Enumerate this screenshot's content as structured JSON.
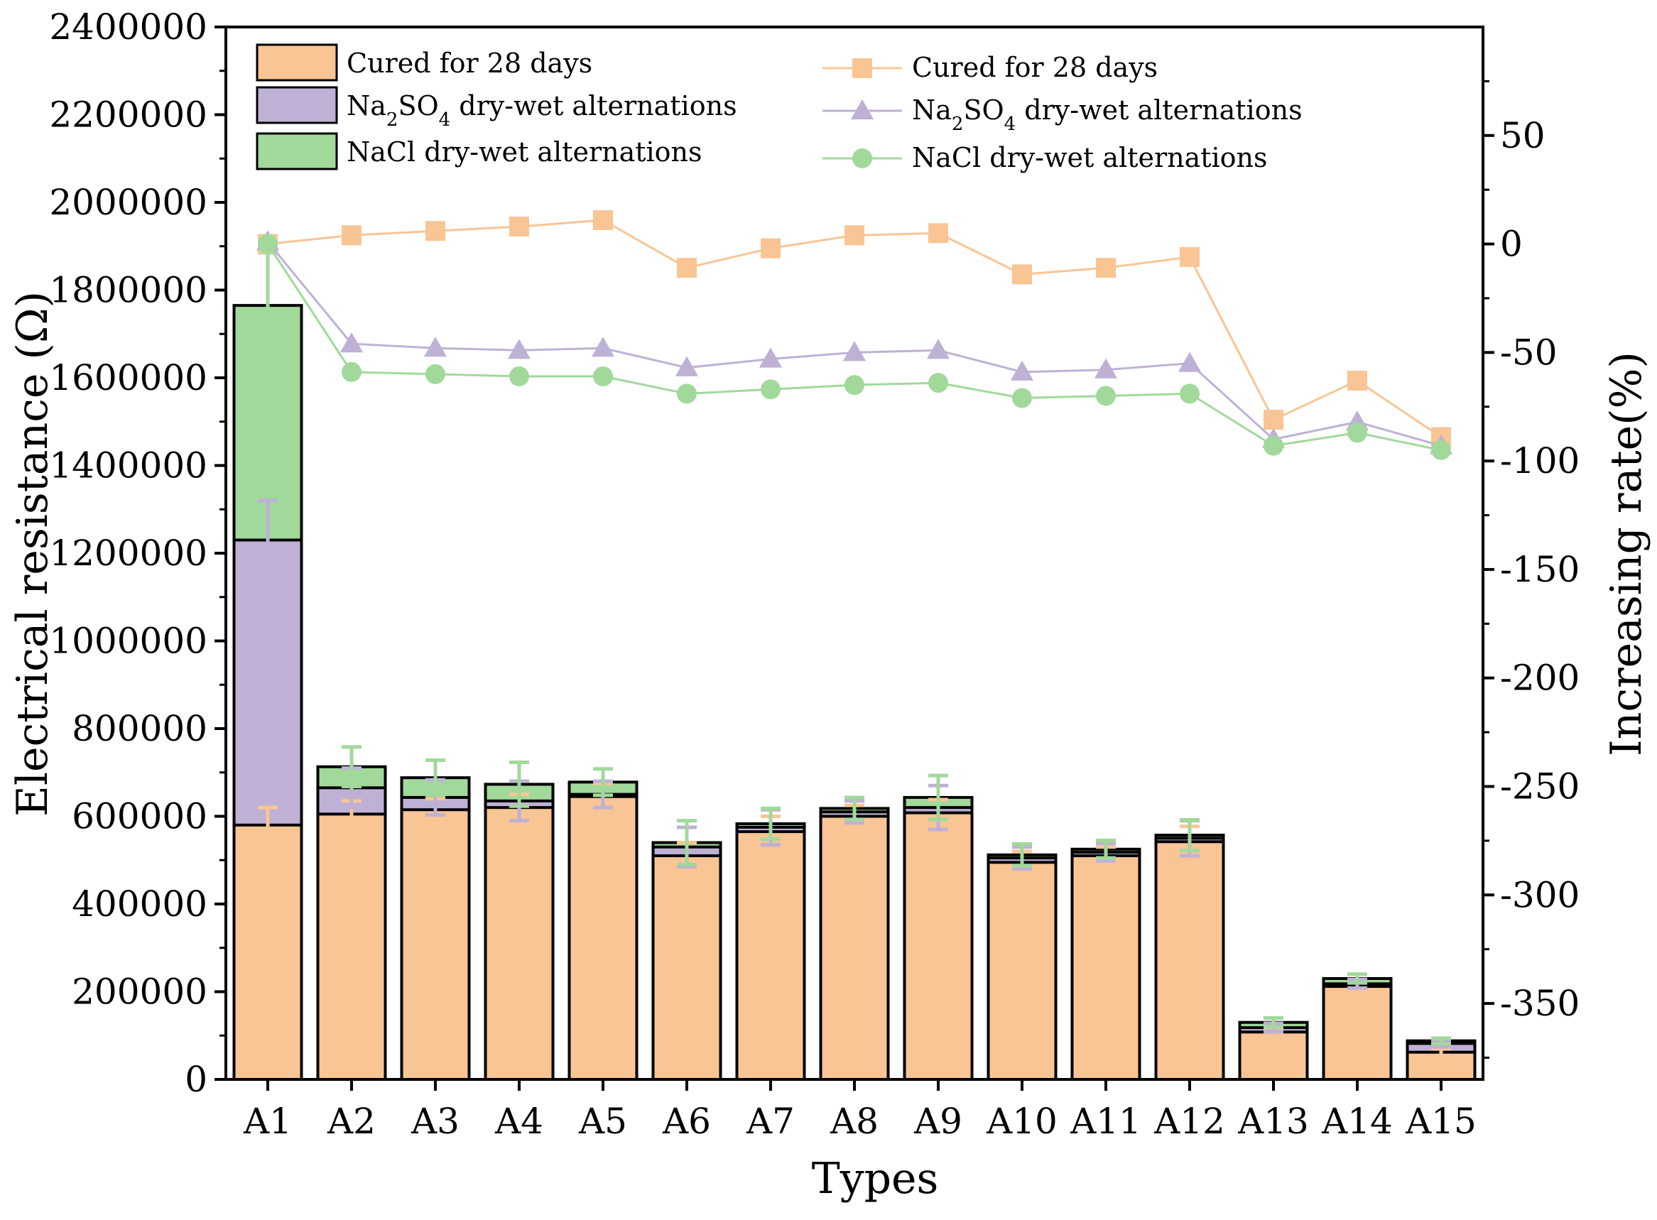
{
  "chart_data": {
    "type": "bar",
    "subtype": "overlapped bars with secondary-axis lines",
    "categories": [
      "A1",
      "A2",
      "A3",
      "A4",
      "A5",
      "A6",
      "A7",
      "A8",
      "A9",
      "A10",
      "A11",
      "A12",
      "A13",
      "A14",
      "A15"
    ],
    "xlabel": "Types",
    "ylabel": "Electrical resistance (Ω)",
    "y2label": "Increasing rate(%)",
    "ylim": [
      0,
      2400000
    ],
    "y2lim": [
      -385,
      100
    ],
    "yticks": [
      "0",
      "200000",
      "400000",
      "600000",
      "800000",
      "1000000",
      "1200000",
      "1400000",
      "1600000",
      "1800000",
      "2000000",
      "2200000",
      "2400000"
    ],
    "y2ticks": [
      "50",
      "0",
      "-50",
      "-100",
      "-150",
      "-200",
      "-250",
      "-300",
      "-350"
    ],
    "bar_series": [
      {
        "name": "Cured for 28 days",
        "color": "#f9c594",
        "values": [
          580000,
          605000,
          615000,
          620000,
          645000,
          510000,
          565000,
          600000,
          608000,
          495000,
          510000,
          542000,
          108000,
          212000,
          62000
        ],
        "errors": [
          40000,
          30000,
          25000,
          30000,
          30000,
          30000,
          35000,
          25000,
          30000,
          25000,
          20000,
          35000,
          10000,
          12000,
          8000
        ]
      },
      {
        "name": "Na2SO4 dry-wet alternations",
        "color": "#bfb1d5",
        "values": [
          1230000,
          665000,
          643000,
          635000,
          650000,
          530000,
          575000,
          610000,
          620000,
          505000,
          518000,
          550000,
          118000,
          218000,
          82000
        ],
        "errors": [
          90000,
          45000,
          40000,
          45000,
          30000,
          45000,
          40000,
          25000,
          50000,
          25000,
          20000,
          40000,
          10000,
          10000,
          8000
        ]
      },
      {
        "name": "NaCl dry-wet alternations",
        "color": "#a1d99b",
        "values": [
          1765000,
          713000,
          688000,
          673000,
          678000,
          540000,
          583000,
          618000,
          643000,
          512000,
          525000,
          557000,
          130000,
          230000,
          88000
        ],
        "errors": [
          120000,
          45000,
          40000,
          50000,
          30000,
          50000,
          35000,
          25000,
          50000,
          25000,
          20000,
          35000,
          10000,
          10000,
          6000
        ]
      }
    ],
    "line_series": [
      {
        "name": "Cured for 28 days",
        "marker": "square",
        "color": "#f9c594",
        "values": [
          0,
          4,
          6,
          8,
          11,
          -11,
          -2,
          4,
          5,
          -14,
          -11,
          -6,
          -81,
          -63,
          -89
        ]
      },
      {
        "name": "Na2SO4 dry-wet alternations",
        "marker": "triangle",
        "color": "#bfb1d5",
        "values": [
          1,
          -46,
          -48,
          -49,
          -48,
          -57,
          -53,
          -50,
          -49,
          -59,
          -58,
          -55,
          -90,
          -82,
          -93
        ]
      },
      {
        "name": "NaCl dry-wet alternations",
        "marker": "circle",
        "color": "#a1d99b",
        "values": [
          0,
          -59,
          -60,
          -61,
          -61,
          -69,
          -67,
          -65,
          -64,
          -71,
          -70,
          -69,
          -93,
          -87,
          -95
        ]
      }
    ],
    "legend_position": "top"
  },
  "legend": {
    "bars": [
      {
        "pre": "Cured for 28 days",
        "sub": "",
        "post": ""
      },
      {
        "pre": "Na",
        "sub": "2",
        "mid": "SO",
        "sub2": "4",
        "post": " dry-wet alternations"
      },
      {
        "pre": "NaCl dry-wet alternations",
        "sub": "",
        "post": ""
      }
    ],
    "lines": [
      {
        "pre": "Cured for 28 days",
        "sub": "",
        "post": ""
      },
      {
        "pre": "Na",
        "sub": "2",
        "mid": "SO",
        "sub2": "4",
        "post": " dry-wet alternations"
      },
      {
        "pre": "NaCl dry-wet alternations",
        "sub": "",
        "post": ""
      }
    ]
  }
}
